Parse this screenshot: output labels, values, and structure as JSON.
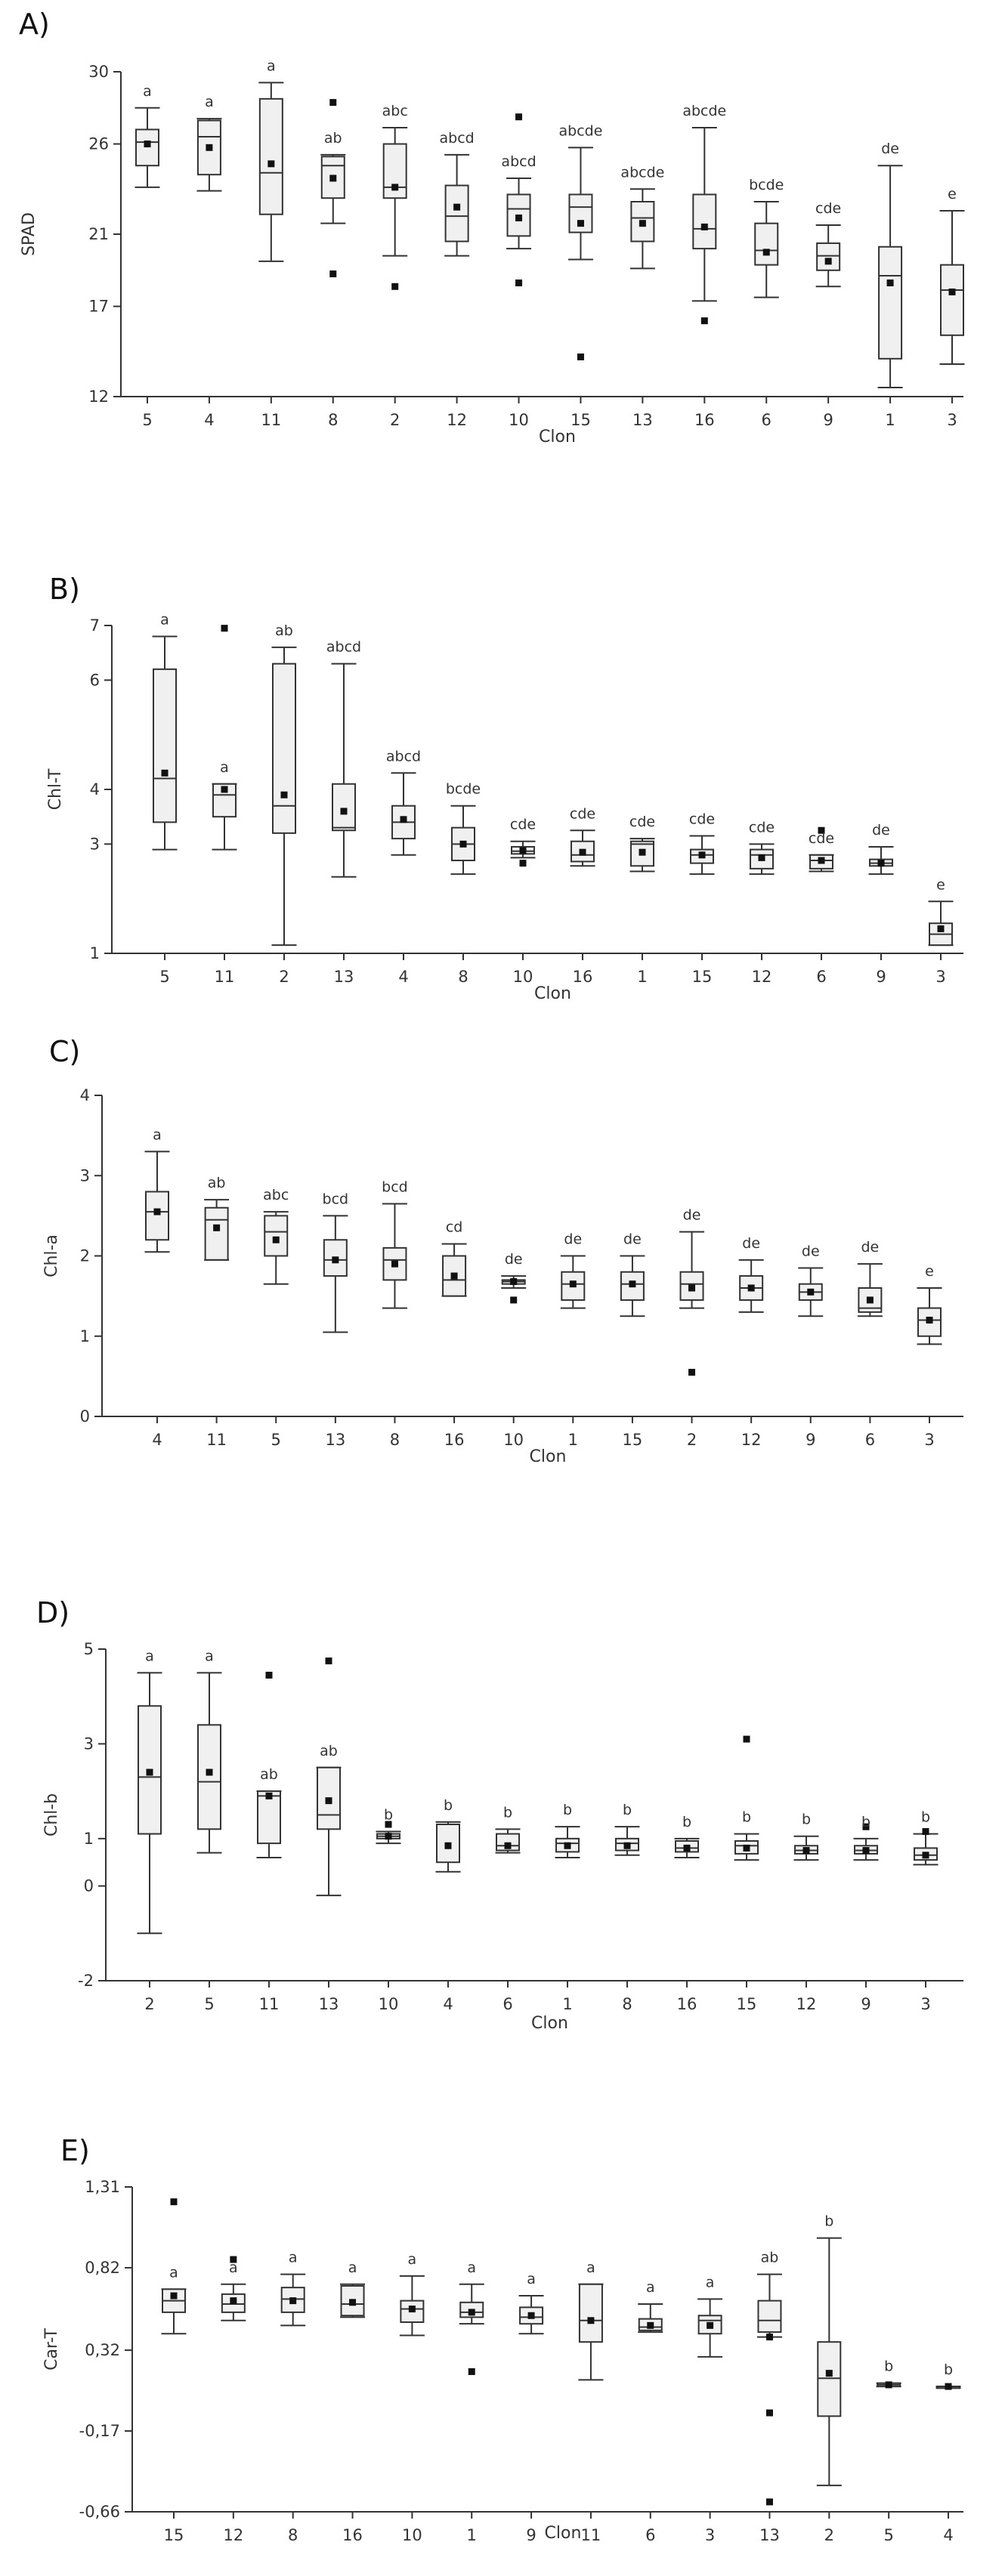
{
  "chart_data": [
    {
      "type": "box",
      "panel": "A)",
      "xlabel": "Clon",
      "ylabel": "SPAD",
      "ylim": [
        12,
        30
      ],
      "yticks": [
        "12",
        "17",
        "21",
        "26",
        "30"
      ],
      "ytick_values": [
        12,
        17,
        21,
        26,
        30
      ],
      "categories": [
        "5",
        "4",
        "11",
        "8",
        "2",
        "12",
        "10",
        "15",
        "13",
        "16",
        "6",
        "9",
        "1",
        "3"
      ],
      "boxes": [
        {
          "min": 23.6,
          "q1": 24.8,
          "median": 26.1,
          "q3": 26.8,
          "max": 28.0,
          "mean": 26.0,
          "outliers": []
        },
        {
          "min": 23.4,
          "q1": 24.3,
          "median": 26.4,
          "q3": 27.3,
          "max": 27.4,
          "mean": 25.8,
          "outliers": []
        },
        {
          "min": 19.5,
          "q1": 22.1,
          "median": 24.4,
          "q3": 28.5,
          "max": 29.4,
          "mean": 24.9,
          "outliers": []
        },
        {
          "min": 21.6,
          "q1": 23.0,
          "median": 24.8,
          "q3": 25.3,
          "max": 25.4,
          "mean": 24.1,
          "outliers": [
            28.3,
            18.8
          ]
        },
        {
          "min": 19.8,
          "q1": 23.0,
          "median": 23.6,
          "q3": 26.0,
          "max": 26.9,
          "mean": 23.6,
          "outliers": [
            18.1
          ]
        },
        {
          "min": 19.8,
          "q1": 20.6,
          "median": 22.0,
          "q3": 23.7,
          "max": 25.4,
          "mean": 22.5,
          "outliers": []
        },
        {
          "min": 20.2,
          "q1": 20.9,
          "median": 22.4,
          "q3": 23.2,
          "max": 24.1,
          "mean": 21.9,
          "outliers": [
            27.5,
            18.3
          ]
        },
        {
          "min": 19.6,
          "q1": 21.1,
          "median": 22.5,
          "q3": 23.2,
          "max": 25.8,
          "mean": 21.6,
          "outliers": [
            14.2
          ]
        },
        {
          "min": 19.1,
          "q1": 20.6,
          "median": 21.9,
          "q3": 22.8,
          "max": 23.5,
          "mean": 21.6,
          "outliers": []
        },
        {
          "min": 17.3,
          "q1": 20.2,
          "median": 21.3,
          "q3": 23.2,
          "max": 26.9,
          "mean": 21.4,
          "outliers": [
            16.2
          ]
        },
        {
          "min": 17.5,
          "q1": 19.3,
          "median": 20.1,
          "q3": 21.6,
          "max": 22.8,
          "mean": 20.0,
          "outliers": []
        },
        {
          "min": 18.1,
          "q1": 19.0,
          "median": 19.8,
          "q3": 20.5,
          "max": 21.5,
          "mean": 19.5,
          "outliers": []
        },
        {
          "min": 12.5,
          "q1": 14.1,
          "median": 18.7,
          "q3": 20.3,
          "max": 24.8,
          "mean": 18.3,
          "outliers": []
        },
        {
          "min": 13.8,
          "q1": 15.4,
          "median": 17.9,
          "q3": 19.3,
          "max": 22.3,
          "mean": 17.8,
          "outliers": []
        }
      ],
      "sig_labels": [
        "a",
        "a",
        "a",
        "ab",
        "abc",
        "abcd",
        "abcd",
        "abcde",
        "abcde",
        "abcde",
        "bcde",
        "cde",
        "de",
        "e"
      ]
    },
    {
      "type": "box",
      "panel": "B)",
      "xlabel": "Clon",
      "ylabel": "Chl-T",
      "ylim": [
        1,
        7
      ],
      "yticks": [
        "1",
        "3",
        "4",
        "6",
        "7"
      ],
      "ytick_values": [
        1,
        3,
        4,
        6,
        7
      ],
      "categories": [
        "5",
        "11",
        "2",
        "13",
        "4",
        "8",
        "10",
        "16",
        "1",
        "15",
        "12",
        "6",
        "9",
        "3"
      ],
      "boxes": [
        {
          "min": 2.9,
          "q1": 3.4,
          "median": 4.2,
          "q3": 6.2,
          "max": 6.8,
          "mean": 4.3,
          "outliers": []
        },
        {
          "min": 2.9,
          "q1": 3.5,
          "median": 3.9,
          "q3": 4.1,
          "max": 4.1,
          "mean": 4.0,
          "outliers": [
            6.95
          ]
        },
        {
          "min": 1.15,
          "q1": 3.2,
          "median": 3.7,
          "q3": 6.3,
          "max": 6.6,
          "mean": 3.9,
          "outliers": []
        },
        {
          "min": 2.4,
          "q1": 3.25,
          "median": 3.3,
          "q3": 4.1,
          "max": 6.3,
          "mean": 3.6,
          "outliers": []
        },
        {
          "min": 2.8,
          "q1": 3.1,
          "median": 3.4,
          "q3": 3.7,
          "max": 4.3,
          "mean": 3.45,
          "outliers": []
        },
        {
          "min": 2.45,
          "q1": 2.7,
          "median": 3.0,
          "q3": 3.3,
          "max": 3.7,
          "mean": 3.0,
          "outliers": []
        },
        {
          "min": 2.75,
          "q1": 2.82,
          "median": 2.87,
          "q3": 2.95,
          "max": 3.05,
          "mean": 2.88,
          "outliers": [
            2.65
          ]
        },
        {
          "min": 2.6,
          "q1": 2.68,
          "median": 2.8,
          "q3": 3.05,
          "max": 3.25,
          "mean": 2.85,
          "outliers": []
        },
        {
          "min": 2.5,
          "q1": 2.6,
          "median": 3.0,
          "q3": 3.05,
          "max": 3.1,
          "mean": 2.85,
          "outliers": []
        },
        {
          "min": 2.45,
          "q1": 2.65,
          "median": 2.8,
          "q3": 2.9,
          "max": 3.15,
          "mean": 2.8,
          "outliers": []
        },
        {
          "min": 2.45,
          "q1": 2.55,
          "median": 2.8,
          "q3": 2.9,
          "max": 3.0,
          "mean": 2.75,
          "outliers": []
        },
        {
          "min": 2.5,
          "q1": 2.55,
          "median": 2.7,
          "q3": 2.8,
          "max": 2.8,
          "mean": 2.7,
          "outliers": [
            3.25
          ]
        },
        {
          "min": 2.45,
          "q1": 2.6,
          "median": 2.65,
          "q3": 2.72,
          "max": 2.95,
          "mean": 2.65,
          "outliers": []
        },
        {
          "min": 1.15,
          "q1": 1.15,
          "median": 1.35,
          "q3": 1.55,
          "max": 1.95,
          "mean": 1.45,
          "outliers": []
        }
      ],
      "sig_labels": [
        "a",
        "a",
        "ab",
        "abcd",
        "abcd",
        "bcde",
        "cde",
        "cde",
        "cde",
        "cde",
        "cde",
        "cde",
        "de",
        "e"
      ]
    },
    {
      "type": "box",
      "panel": "C)",
      "xlabel": "Clon",
      "ylabel": "Chl-a",
      "ylim": [
        0,
        4
      ],
      "yticks": [
        "0",
        "1",
        "2",
        "3",
        "4"
      ],
      "ytick_values": [
        0,
        1,
        2,
        3,
        4
      ],
      "categories": [
        "4",
        "11",
        "5",
        "13",
        "8",
        "16",
        "10",
        "1",
        "15",
        "2",
        "12",
        "9",
        "6",
        "3"
      ],
      "boxes": [
        {
          "min": 2.05,
          "q1": 2.2,
          "median": 2.55,
          "q3": 2.8,
          "max": 3.3,
          "mean": 2.55,
          "outliers": []
        },
        {
          "min": 1.95,
          "q1": 1.95,
          "median": 2.45,
          "q3": 2.6,
          "max": 2.7,
          "mean": 2.35,
          "outliers": []
        },
        {
          "min": 1.65,
          "q1": 2.0,
          "median": 2.3,
          "q3": 2.5,
          "max": 2.55,
          "mean": 2.2,
          "outliers": []
        },
        {
          "min": 1.05,
          "q1": 1.75,
          "median": 1.95,
          "q3": 2.2,
          "max": 2.5,
          "mean": 1.95,
          "outliers": []
        },
        {
          "min": 1.35,
          "q1": 1.7,
          "median": 1.95,
          "q3": 2.1,
          "max": 2.65,
          "mean": 1.9,
          "outliers": []
        },
        {
          "min": 1.5,
          "q1": 1.5,
          "median": 1.7,
          "q3": 2.0,
          "max": 2.15,
          "mean": 1.75,
          "outliers": []
        },
        {
          "min": 1.6,
          "q1": 1.65,
          "median": 1.68,
          "q3": 1.7,
          "max": 1.75,
          "mean": 1.68,
          "outliers": [
            1.45
          ]
        },
        {
          "min": 1.35,
          "q1": 1.45,
          "median": 1.65,
          "q3": 1.8,
          "max": 2.0,
          "mean": 1.65,
          "outliers": []
        },
        {
          "min": 1.25,
          "q1": 1.45,
          "median": 1.65,
          "q3": 1.8,
          "max": 2.0,
          "mean": 1.65,
          "outliers": []
        },
        {
          "min": 1.35,
          "q1": 1.45,
          "median": 1.65,
          "q3": 1.8,
          "max": 2.3,
          "mean": 1.6,
          "outliers": [
            0.55
          ]
        },
        {
          "min": 1.3,
          "q1": 1.45,
          "median": 1.6,
          "q3": 1.75,
          "max": 1.95,
          "mean": 1.6,
          "outliers": []
        },
        {
          "min": 1.25,
          "q1": 1.45,
          "median": 1.55,
          "q3": 1.65,
          "max": 1.85,
          "mean": 1.55,
          "outliers": []
        },
        {
          "min": 1.25,
          "q1": 1.3,
          "median": 1.35,
          "q3": 1.6,
          "max": 1.9,
          "mean": 1.45,
          "outliers": []
        },
        {
          "min": 0.9,
          "q1": 1.0,
          "median": 1.2,
          "q3": 1.35,
          "max": 1.6,
          "mean": 1.2,
          "outliers": []
        }
      ],
      "sig_labels": [
        "a",
        "ab",
        "abc",
        "bcd",
        "bcd",
        "cd",
        "de",
        "de",
        "de",
        "de",
        "de",
        "de",
        "de",
        "e"
      ]
    },
    {
      "type": "box",
      "panel": "D)",
      "xlabel": "Clon",
      "ylabel": "Chl-b",
      "ylim": [
        -2,
        5
      ],
      "yticks": [
        "-2",
        "0",
        "1",
        "3",
        "5"
      ],
      "ytick_values": [
        -2,
        0,
        1,
        3,
        5
      ],
      "categories": [
        "2",
        "5",
        "11",
        "13",
        "10",
        "4",
        "6",
        "1",
        "8",
        "16",
        "15",
        "12",
        "9",
        "3"
      ],
      "boxes": [
        {
          "min": -1.0,
          "q1": 1.1,
          "median": 2.3,
          "q3": 3.8,
          "max": 4.5,
          "mean": 2.4,
          "outliers": []
        },
        {
          "min": 0.7,
          "q1": 1.2,
          "median": 2.2,
          "q3": 3.4,
          "max": 4.5,
          "mean": 2.4,
          "outliers": []
        },
        {
          "min": 0.6,
          "q1": 0.9,
          "median": 1.9,
          "q3": 2.0,
          "max": 2.0,
          "mean": 1.9,
          "outliers": [
            4.45
          ]
        },
        {
          "min": -0.2,
          "q1": 1.2,
          "median": 1.5,
          "q3": 2.5,
          "max": 2.5,
          "mean": 1.8,
          "outliers": [
            4.75
          ]
        },
        {
          "min": 0.9,
          "q1": 1.0,
          "median": 1.05,
          "q3": 1.1,
          "max": 1.15,
          "mean": 1.05,
          "outliers": [
            1.3
          ]
        },
        {
          "min": 0.3,
          "q1": 0.5,
          "median": 1.3,
          "q3": 1.3,
          "max": 1.35,
          "mean": 0.85,
          "outliers": []
        },
        {
          "min": 0.7,
          "q1": 0.75,
          "median": 0.85,
          "q3": 1.1,
          "max": 1.2,
          "mean": 0.85,
          "outliers": []
        },
        {
          "min": 0.6,
          "q1": 0.72,
          "median": 0.9,
          "q3": 1.0,
          "max": 1.25,
          "mean": 0.85,
          "outliers": []
        },
        {
          "min": 0.65,
          "q1": 0.75,
          "median": 0.9,
          "q3": 1.0,
          "max": 1.25,
          "mean": 0.85,
          "outliers": []
        },
        {
          "min": 0.6,
          "q1": 0.72,
          "median": 0.8,
          "q3": 0.95,
          "max": 1.0,
          "mean": 0.8,
          "outliers": []
        },
        {
          "min": 0.55,
          "q1": 0.68,
          "median": 0.85,
          "q3": 0.95,
          "max": 1.1,
          "mean": 0.8,
          "outliers": [
            3.1
          ]
        },
        {
          "min": 0.55,
          "q1": 0.68,
          "median": 0.75,
          "q3": 0.85,
          "max": 1.05,
          "mean": 0.75,
          "outliers": []
        },
        {
          "min": 0.55,
          "q1": 0.68,
          "median": 0.75,
          "q3": 0.85,
          "max": 1.0,
          "mean": 0.75,
          "outliers": [
            1.25
          ]
        },
        {
          "min": 0.45,
          "q1": 0.55,
          "median": 0.65,
          "q3": 0.8,
          "max": 1.1,
          "mean": 0.65,
          "outliers": [
            1.15
          ]
        }
      ],
      "sig_labels": [
        "a",
        "a",
        "ab",
        "ab",
        "b",
        "b",
        "b",
        "b",
        "b",
        "b",
        "b",
        "b",
        "b",
        "b"
      ]
    },
    {
      "type": "box",
      "panel": "E)",
      "xlabel": "Clon",
      "ylabel": "Car-T",
      "ylim": [
        -0.66,
        1.31
      ],
      "yticks": [
        "-0,66",
        "-0,17",
        "0,32",
        "0,82",
        "1,31"
      ],
      "ytick_values": [
        -0.66,
        -0.17,
        0.32,
        0.82,
        1.31
      ],
      "categories": [
        "15",
        "12",
        "8",
        "16",
        "10",
        "1",
        "9",
        "11",
        "6",
        "3",
        "13",
        "2",
        "5",
        "4"
      ],
      "boxes": [
        {
          "min": 0.42,
          "q1": 0.55,
          "median": 0.62,
          "q3": 0.69,
          "max": 0.69,
          "mean": 0.65,
          "outliers": [
            1.22
          ]
        },
        {
          "min": 0.5,
          "q1": 0.55,
          "median": 0.6,
          "q3": 0.66,
          "max": 0.72,
          "mean": 0.62,
          "outliers": [
            0.87
          ]
        },
        {
          "min": 0.47,
          "q1": 0.55,
          "median": 0.63,
          "q3": 0.7,
          "max": 0.78,
          "mean": 0.62,
          "outliers": []
        },
        {
          "min": 0.52,
          "q1": 0.53,
          "median": 0.6,
          "q3": 0.71,
          "max": 0.72,
          "mean": 0.61,
          "outliers": []
        },
        {
          "min": 0.41,
          "q1": 0.49,
          "median": 0.57,
          "q3": 0.62,
          "max": 0.77,
          "mean": 0.57,
          "outliers": []
        },
        {
          "min": 0.48,
          "q1": 0.52,
          "median": 0.55,
          "q3": 0.61,
          "max": 0.72,
          "mean": 0.55,
          "outliers": [
            0.19
          ]
        },
        {
          "min": 0.42,
          "q1": 0.48,
          "median": 0.52,
          "q3": 0.58,
          "max": 0.65,
          "mean": 0.53,
          "outliers": []
        },
        {
          "min": 0.14,
          "q1": 0.37,
          "median": 0.5,
          "q3": 0.72,
          "max": 0.72,
          "mean": 0.5,
          "outliers": []
        },
        {
          "min": 0.43,
          "q1": 0.44,
          "median": 0.46,
          "q3": 0.51,
          "max": 0.6,
          "mean": 0.47,
          "outliers": []
        },
        {
          "min": 0.28,
          "q1": 0.42,
          "median": 0.5,
          "q3": 0.53,
          "max": 0.63,
          "mean": 0.47,
          "outliers": []
        },
        {
          "min": 0.4,
          "q1": 0.43,
          "median": 0.5,
          "q3": 0.62,
          "max": 0.78,
          "mean": 0.4,
          "outliers": [
            -0.06,
            -0.6
          ]
        },
        {
          "min": -0.5,
          "q1": -0.08,
          "median": 0.15,
          "q3": 0.37,
          "max": 1.0,
          "mean": 0.18,
          "outliers": []
        },
        {
          "min": 0.1,
          "q1": 0.1,
          "median": 0.11,
          "q3": 0.12,
          "max": 0.12,
          "mean": 0.11,
          "outliers": []
        },
        {
          "min": 0.09,
          "q1": 0.09,
          "median": 0.1,
          "q3": 0.1,
          "max": 0.1,
          "mean": 0.1,
          "outliers": []
        }
      ],
      "sig_labels": [
        "a",
        "a",
        "a",
        "a",
        "a",
        "a",
        "a",
        "a",
        "a",
        "a",
        "ab",
        "b",
        "b",
        "b"
      ]
    }
  ]
}
